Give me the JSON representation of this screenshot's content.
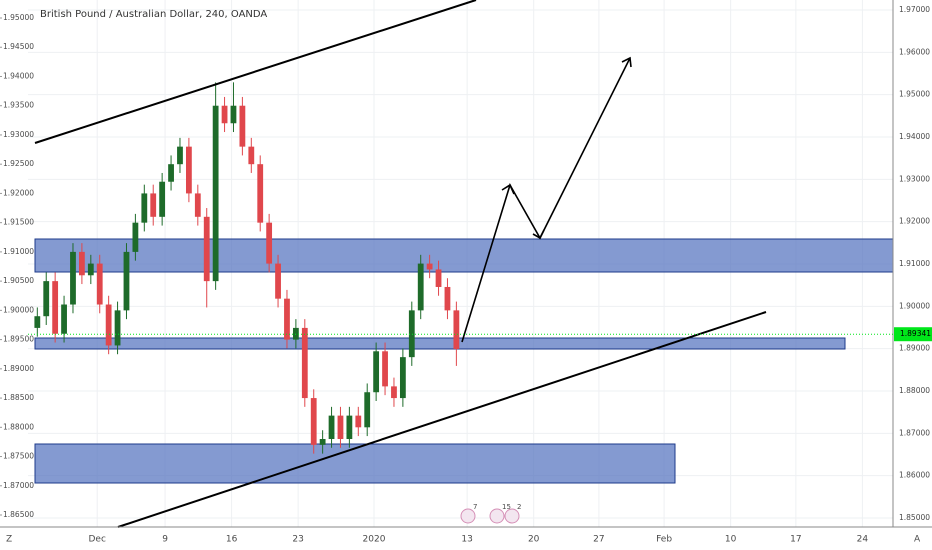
{
  "chart_data": {
    "type": "candlestick",
    "title": "British Pound / Australian Dollar, 240, OANDA",
    "x": [
      0.5,
      1.17,
      1.84,
      2.51,
      3.18,
      3.85,
      4.52,
      5.19,
      5.86,
      6.53,
      7.2,
      7.87,
      8.54,
      9.21,
      9.88,
      10.55,
      11.22,
      11.89,
      12.56,
      13.23,
      13.9,
      14.57,
      15.24,
      15.91,
      16.58,
      17.25,
      17.92,
      18.59,
      19.26,
      19.93,
      20.6,
      21.27,
      21.94,
      22.61,
      23.28,
      23.95,
      24.62,
      25.29,
      25.96,
      26.63,
      27.3,
      27.97,
      28.64,
      29.31,
      29.98,
      30.65,
      31.32,
      31.99
    ],
    "open": [
      1.897,
      1.899,
      1.905,
      1.896,
      1.901,
      1.91,
      1.906,
      1.908,
      1.901,
      1.894,
      1.9,
      1.91,
      1.915,
      1.92,
      1.916,
      1.922,
      1.925,
      1.928,
      1.92,
      1.916,
      1.905,
      1.935,
      1.932,
      1.935,
      1.928,
      1.925,
      1.915,
      1.908,
      1.902,
      1.895,
      1.897,
      1.885,
      1.877,
      1.878,
      1.882,
      1.878,
      1.882,
      1.88,
      1.886,
      1.893,
      1.887,
      1.885,
      1.892,
      1.9,
      1.908,
      1.907,
      1.904,
      1.9
    ],
    "high": [
      1.9005,
      1.9065,
      1.9065,
      1.9025,
      1.9115,
      1.9115,
      1.9095,
      1.9095,
      1.9025,
      1.9015,
      1.9115,
      1.9165,
      1.9215,
      1.9215,
      1.9235,
      1.9265,
      1.9295,
      1.9295,
      1.9215,
      1.9175,
      1.939,
      1.9365,
      1.939,
      1.9365,
      1.9295,
      1.9265,
      1.9165,
      1.9095,
      1.9035,
      1.8985,
      1.8985,
      1.8865,
      1.8795,
      1.8835,
      1.8835,
      1.8835,
      1.8835,
      1.8875,
      1.8945,
      1.8945,
      1.8885,
      1.8935,
      1.9015,
      1.9095,
      1.9095,
      1.9085,
      1.9055,
      1.9015
    ],
    "low": [
      1.8955,
      1.8975,
      1.8945,
      1.8945,
      1.8995,
      1.9045,
      1.9045,
      1.8995,
      1.8925,
      1.8925,
      1.8985,
      1.9085,
      1.9135,
      1.9145,
      1.9145,
      1.9205,
      1.9235,
      1.9185,
      1.9145,
      1.9005,
      1.9035,
      1.9305,
      1.9305,
      1.9265,
      1.9235,
      1.9135,
      1.9065,
      1.9005,
      1.8935,
      1.8935,
      1.8835,
      1.8755,
      1.8755,
      1.8765,
      1.8765,
      1.8765,
      1.8785,
      1.8785,
      1.8845,
      1.8855,
      1.8835,
      1.8835,
      1.8905,
      1.8985,
      1.9055,
      1.9025,
      1.8985,
      1.8905
    ],
    "close": [
      1.899,
      1.905,
      1.896,
      1.901,
      1.91,
      1.906,
      1.908,
      1.901,
      1.894,
      1.9,
      1.91,
      1.915,
      1.92,
      1.916,
      1.922,
      1.925,
      1.928,
      1.92,
      1.916,
      1.905,
      1.935,
      1.932,
      1.935,
      1.928,
      1.925,
      1.915,
      1.908,
      1.902,
      1.895,
      1.897,
      1.885,
      1.877,
      1.878,
      1.882,
      1.878,
      1.882,
      1.88,
      1.886,
      1.893,
      1.887,
      1.885,
      1.892,
      1.9,
      1.908,
      1.907,
      1.904,
      1.9,
      1.8934
    ],
    "up_color": "#1e6b2a",
    "down_color": "#e0474c",
    "xlim": [
      -0.2,
      64.8
    ],
    "xticks": [
      {
        "value": 5,
        "label": "Dec"
      },
      {
        "value": 10.1,
        "label": "9"
      },
      {
        "value": 15.1,
        "label": "16"
      },
      {
        "value": 20.1,
        "label": "23"
      },
      {
        "value": 25.8,
        "label": "2020"
      },
      {
        "value": 32.8,
        "label": "13"
      },
      {
        "value": 37.8,
        "label": "20"
      },
      {
        "value": 42.7,
        "label": "27"
      },
      {
        "value": 47.6,
        "label": "Feb"
      },
      {
        "value": 52.6,
        "label": "10"
      },
      {
        "value": 57.5,
        "label": "17"
      },
      {
        "value": 62.5,
        "label": "24"
      }
    ],
    "ylim": [
      1.86295,
      1.95308
    ],
    "yticks": [
      {
        "value": 1.865,
        "label": "1.86500"
      },
      {
        "value": 1.87,
        "label": "1.87000"
      },
      {
        "value": 1.875,
        "label": "1.87500"
      },
      {
        "value": 1.88,
        "label": "1.88000"
      },
      {
        "value": 1.885,
        "label": "1.88500"
      },
      {
        "value": 1.89,
        "label": "1.89000"
      },
      {
        "value": 1.895,
        "label": "1.89500"
      },
      {
        "value": 1.9,
        "label": "1.90000"
      },
      {
        "value": 1.905,
        "label": "1.90500"
      },
      {
        "value": 1.91,
        "label": "1.91000"
      },
      {
        "value": 1.915,
        "label": "1.91500"
      },
      {
        "value": 1.92,
        "label": "1.92000"
      },
      {
        "value": 1.925,
        "label": "1.92500"
      },
      {
        "value": 1.93,
        "label": "1.93000"
      },
      {
        "value": 1.935,
        "label": "1.93500"
      },
      {
        "value": 1.94,
        "label": "1.94000"
      },
      {
        "value": 1.945,
        "label": "1.94500"
      },
      {
        "value": 1.95,
        "label": "1.95000"
      }
    ],
    "y2lim": [
      1.84787,
      1.97236
    ],
    "y2ticks": [
      {
        "value": 1.85,
        "label": "1.85000"
      },
      {
        "value": 1.86,
        "label": "1.86000"
      },
      {
        "value": 1.87,
        "label": "1.87000"
      },
      {
        "value": 1.88,
        "label": "1.88000"
      },
      {
        "value": 1.89,
        "label": "1.89000"
      },
      {
        "value": 1.9,
        "label": "1.90000"
      },
      {
        "value": 1.91,
        "label": "1.91000"
      },
      {
        "value": 1.92,
        "label": "1.92000"
      },
      {
        "value": 1.93,
        "label": "1.93000"
      },
      {
        "value": 1.94,
        "label": "1.94000"
      },
      {
        "value": 1.95,
        "label": "1.95000"
      },
      {
        "value": 1.96,
        "label": "1.96000"
      },
      {
        "value": 1.97,
        "label": "1.97000"
      }
    ],
    "grid": true,
    "last_price": 1.89341,
    "last_price_color": "#00e61a",
    "corner_left": "Z",
    "corner_right": "A",
    "event_badges": [
      "7",
      "15",
      "2"
    ]
  }
}
